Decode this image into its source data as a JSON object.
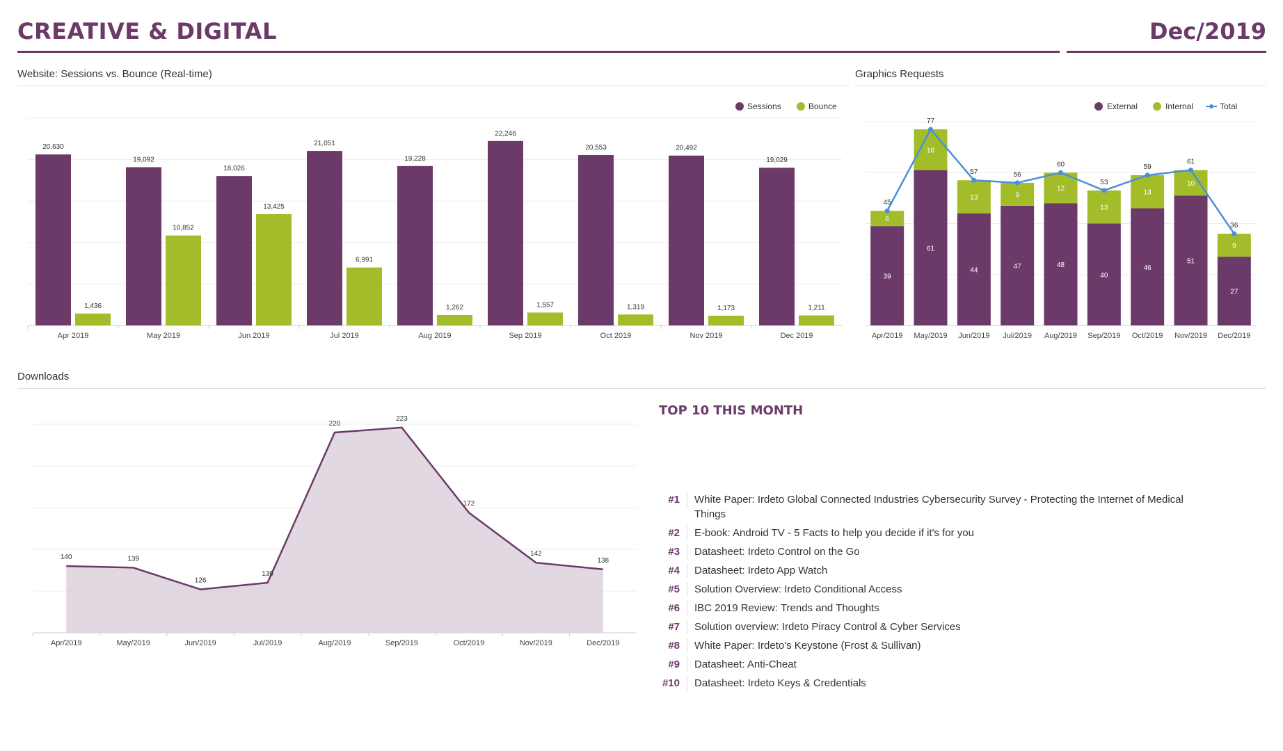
{
  "header": {
    "title": "CREATIVE & DIGITAL",
    "date": "Dec/2019"
  },
  "sections": {
    "sessions": "Website: Sessions vs. Bounce (Real-time)",
    "graphics": "Graphics Requests",
    "downloads": "Downloads"
  },
  "colors": {
    "purple": "#6b3a68",
    "green": "#a3bd2a",
    "blue": "#4a90d9",
    "area": "#ddd1dc"
  },
  "chart_data": [
    {
      "id": "sessions-bounce",
      "type": "bar",
      "title": "Website: Sessions vs. Bounce (Real-time)",
      "categories": [
        "Apr 2019",
        "May 2019",
        "Jun 2019",
        "Jul 2019",
        "Aug 2019",
        "Sep 2019",
        "Oct 2019",
        "Nov 2019",
        "Dec 2019"
      ],
      "series": [
        {
          "name": "Sessions",
          "values": [
            20630,
            19092,
            18026,
            21051,
            19228,
            22246,
            20553,
            20492,
            19029
          ],
          "labels": [
            "20,630",
            "19,092",
            "18,026",
            "21,051",
            "19,228",
            "22,246",
            "20,553",
            "20,492",
            "19,029"
          ]
        },
        {
          "name": "Bounce",
          "values": [
            1436,
            10852,
            13425,
            6991,
            1262,
            1557,
            1319,
            1173,
            1211
          ],
          "labels": [
            "1,436",
            "10,852",
            "13,425",
            "6,991",
            "1,262",
            "1,557",
            "1,319",
            "1,173",
            "1,211"
          ]
        }
      ],
      "ylim": [
        0,
        25000
      ],
      "legend": "top-right"
    },
    {
      "id": "graphics-requests",
      "type": "bar",
      "stacked": true,
      "title": "Graphics Requests",
      "categories": [
        "Apr/2019",
        "May/2019",
        "Jun/2019",
        "Jul/2019",
        "Aug/2019",
        "Sep/2019",
        "Oct/2019",
        "Nov/2019",
        "Dec/2019"
      ],
      "series": [
        {
          "name": "External",
          "values": [
            39,
            61,
            44,
            47,
            48,
            40,
            46,
            51,
            27
          ]
        },
        {
          "name": "Internal",
          "values": [
            6,
            16,
            13,
            9,
            12,
            13,
            13,
            10,
            9
          ]
        },
        {
          "name": "Total",
          "type": "line",
          "values": [
            45,
            77,
            57,
            56,
            60,
            53,
            59,
            61,
            36
          ]
        }
      ],
      "ylim": [
        0,
        80
      ],
      "legend": "top-right"
    },
    {
      "id": "downloads",
      "type": "area",
      "title": "Downloads",
      "categories": [
        "Apr/2019",
        "May/2019",
        "Jun/2019",
        "Jul/2019",
        "Aug/2019",
        "Sep/2019",
        "Oct/2019",
        "Nov/2019",
        "Dec/2019"
      ],
      "values": [
        140,
        139,
        126,
        130,
        220,
        223,
        172,
        142,
        138
      ],
      "ylim": [
        100,
        225
      ]
    }
  ],
  "top10": {
    "title": "TOP 10 THIS MONTH",
    "items": [
      {
        "rank": "#1",
        "text": "White Paper: Irdeto Global Connected Industries Cybersecurity Survey - Protecting the Internet of Medical Things"
      },
      {
        "rank": "#2",
        "text": "E-book: Android TV - 5 Facts to help you decide if it's for you"
      },
      {
        "rank": "#3",
        "text": "Datasheet: Irdeto Control on the Go"
      },
      {
        "rank": "#4",
        "text": "Datasheet: Irdeto App Watch"
      },
      {
        "rank": "#5",
        "text": "Solution Overview: Irdeto Conditional Access"
      },
      {
        "rank": "#6",
        "text": "IBC 2019 Review: Trends and Thoughts"
      },
      {
        "rank": "#7",
        "text": "Solution overview: Irdeto Piracy Control & Cyber Services"
      },
      {
        "rank": "#8",
        "text": "White Paper: Irdeto's Keystone (Frost & Sullivan)"
      },
      {
        "rank": "#9",
        "text": "Datasheet: Anti-Cheat"
      },
      {
        "rank": "#10",
        "text": "Datasheet: Irdeto Keys & Credentials"
      }
    ]
  }
}
